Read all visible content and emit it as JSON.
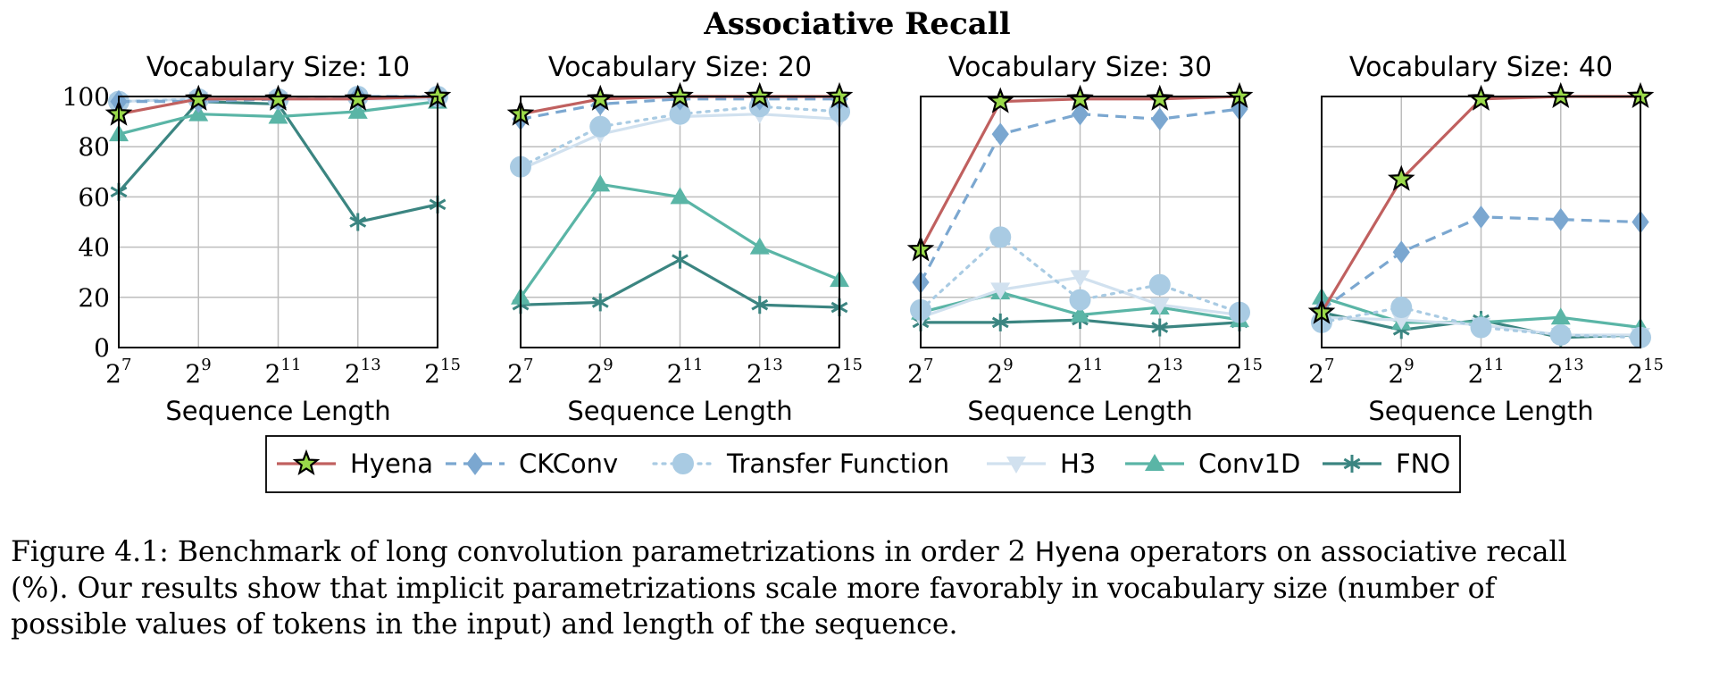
{
  "suptitle": "Associative Recall",
  "legend_entries": [
    "Hyena",
    "CKConv",
    "Transfer Function",
    "H3",
    "Conv1D",
    "FNO"
  ],
  "caption": {
    "line1_prefix": "Figure 4.1: Benchmark of long convolution parametrizations in order 2 ",
    "line1_sans": "Hyena",
    "line1_suffix": " operators on associative recall",
    "line2": "(%).  Our results show that implicit parametrizations scale more favorably in vocabulary size (number of",
    "line3": "possible values of tokens in the input) and length of the sequence."
  },
  "series_style": {
    "Hyena": {
      "color": "#c0605f",
      "marker": "star",
      "dash": "solid"
    },
    "CKConv": {
      "color": "#7ba7d0",
      "marker": "diamond",
      "dash": "dashed"
    },
    "Transfer Function": {
      "color": "#a9cbe3",
      "marker": "circle",
      "dash": "dotted"
    },
    "H3": {
      "color": "#d1e1ef",
      "marker": "triangle-down",
      "dash": "solid"
    },
    "Conv1D": {
      "color": "#5ab5a6",
      "marker": "triangle-up",
      "dash": "solid"
    },
    "FNO": {
      "color": "#3b8581",
      "marker": "asterisk",
      "dash": "solid"
    }
  },
  "chart_data": [
    {
      "type": "line",
      "title": "Vocabulary Size: 10",
      "xlabel": "Sequence Length",
      "ylabel": "",
      "x_exponents": [
        7,
        9,
        11,
        13,
        15
      ],
      "x_base": "2",
      "yticks": [
        0,
        20,
        40,
        60,
        80,
        100
      ],
      "ylim": [
        0,
        100
      ],
      "show_yticks": true,
      "series": [
        {
          "name": "FNO",
          "values": [
            62,
            98,
            97,
            50,
            57
          ]
        },
        {
          "name": "Conv1D",
          "values": [
            85,
            93,
            92,
            94,
            98
          ]
        },
        {
          "name": "H3",
          "values": [
            98,
            99,
            99,
            99,
            99
          ]
        },
        {
          "name": "Transfer Function",
          "values": [
            98,
            99,
            99,
            100,
            100
          ]
        },
        {
          "name": "CKConv",
          "values": [
            98,
            98,
            99,
            100,
            100
          ]
        },
        {
          "name": "Hyena",
          "values": [
            93,
            99,
            99,
            99,
            100
          ]
        }
      ]
    },
    {
      "type": "line",
      "title": "Vocabulary Size: 20",
      "xlabel": "Sequence Length",
      "ylabel": "",
      "x_exponents": [
        7,
        9,
        11,
        13,
        15
      ],
      "x_base": "2",
      "yticks": [
        0,
        20,
        40,
        60,
        80,
        100
      ],
      "ylim": [
        0,
        100
      ],
      "show_yticks": false,
      "series": [
        {
          "name": "FNO",
          "values": [
            17,
            18,
            35,
            17,
            16
          ]
        },
        {
          "name": "Conv1D",
          "values": [
            20,
            65,
            60,
            40,
            27
          ]
        },
        {
          "name": "H3",
          "values": [
            71,
            85,
            92,
            93,
            91
          ]
        },
        {
          "name": "Transfer Function",
          "values": [
            72,
            88,
            93,
            96,
            94
          ]
        },
        {
          "name": "CKConv",
          "values": [
            91,
            97,
            99,
            99,
            99
          ]
        },
        {
          "name": "Hyena",
          "values": [
            93,
            99,
            100,
            100,
            100
          ]
        }
      ]
    },
    {
      "type": "line",
      "title": "Vocabulary Size: 30",
      "xlabel": "Sequence Length",
      "ylabel": "",
      "x_exponents": [
        7,
        9,
        11,
        13,
        15
      ],
      "x_base": "2",
      "yticks": [
        0,
        20,
        40,
        60,
        80,
        100
      ],
      "ylim": [
        0,
        100
      ],
      "show_yticks": false,
      "series": [
        {
          "name": "FNO",
          "values": [
            10,
            10,
            11,
            8,
            10
          ]
        },
        {
          "name": "Conv1D",
          "values": [
            14,
            22,
            13,
            16,
            11
          ]
        },
        {
          "name": "H3",
          "values": [
            12,
            23,
            28,
            17,
            13
          ]
        },
        {
          "name": "Transfer Function",
          "values": [
            15,
            44,
            19,
            25,
            14
          ]
        },
        {
          "name": "CKConv",
          "values": [
            26,
            85,
            93,
            91,
            95
          ]
        },
        {
          "name": "Hyena",
          "values": [
            39,
            98,
            99,
            99,
            100
          ]
        }
      ]
    },
    {
      "type": "line",
      "title": "Vocabulary Size: 40",
      "xlabel": "Sequence Length",
      "ylabel": "",
      "x_exponents": [
        7,
        9,
        11,
        13,
        15
      ],
      "x_base": "2",
      "yticks": [
        0,
        20,
        40,
        60,
        80,
        100
      ],
      "ylim": [
        0,
        100
      ],
      "show_yticks": false,
      "series": [
        {
          "name": "FNO",
          "values": [
            14,
            7,
            11,
            4,
            5
          ]
        },
        {
          "name": "Conv1D",
          "values": [
            20,
            10,
            10,
            12,
            8
          ]
        },
        {
          "name": "H3",
          "values": [
            12,
            11,
            9,
            5,
            5
          ]
        },
        {
          "name": "Transfer Function",
          "values": [
            10,
            16,
            8,
            5,
            4
          ]
        },
        {
          "name": "CKConv",
          "values": [
            15,
            38,
            52,
            51,
            50
          ]
        },
        {
          "name": "Hyena",
          "values": [
            14,
            67,
            99,
            100,
            100
          ]
        }
      ]
    }
  ]
}
